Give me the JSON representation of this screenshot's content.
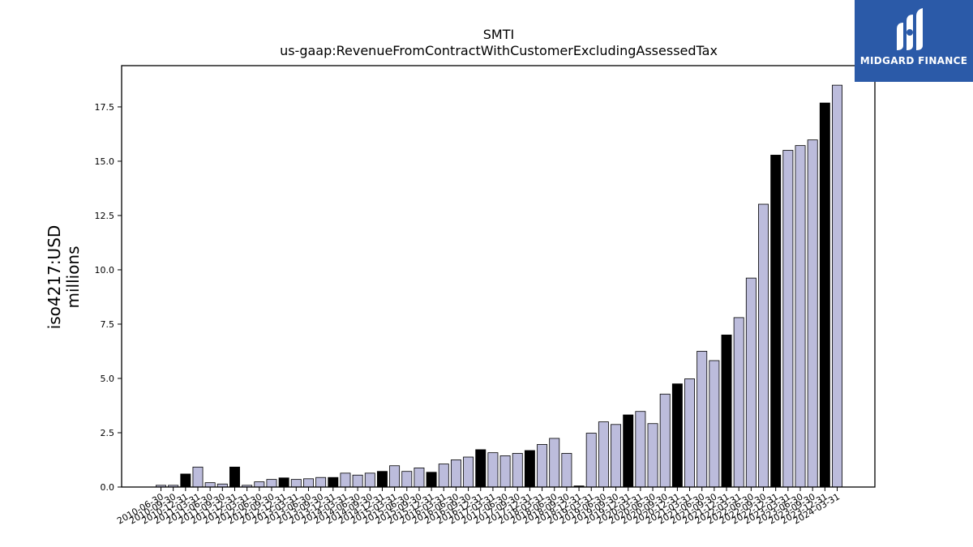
{
  "chart_data": {
    "type": "bar",
    "title": "SMTI",
    "subtitle": "us-gaap:RevenueFromContractWithCustomerExcludingAssessedTax",
    "ylabel_line1": "iso4217:USD",
    "ylabel_line2": "millions",
    "xlabel": "",
    "ylim": [
      0,
      19.4
    ],
    "yticks": [
      "0.0",
      "2.5",
      "5.0",
      "7.5",
      "10.0",
      "12.5",
      "15.0",
      "17.5"
    ],
    "grid": false,
    "colors": {
      "quarter": "#bcbcdc",
      "annual": "#000000",
      "edge": "#000000"
    },
    "categories": [
      "2010-06-30",
      "2010-09-30",
      "2010-12-31",
      "2011-03-31",
      "2011-06-30",
      "2011-09-30",
      "2011-12-31",
      "2012-03-31",
      "2012-06-30",
      "2012-09-30",
      "2012-12-31",
      "2013-03-31",
      "2013-06-30",
      "2013-09-30",
      "2013-12-31",
      "2014-03-31",
      "2014-06-30",
      "2014-09-30",
      "2014-12-31",
      "2015-03-31",
      "2015-06-30",
      "2015-09-30",
      "2015-12-31",
      "2016-03-31",
      "2016-06-30",
      "2016-09-30",
      "2016-12-31",
      "2017-03-31",
      "2017-06-30",
      "2017-09-30",
      "2017-12-31",
      "2018-03-31",
      "2018-06-30",
      "2018-09-30",
      "2018-12-31",
      "2019-03-31",
      "2019-06-30",
      "2019-09-30",
      "2019-12-31",
      "2020-03-31",
      "2020-06-30",
      "2020-09-30",
      "2020-12-31",
      "2021-03-31",
      "2021-06-30",
      "2021-09-30",
      "2021-12-31",
      "2022-03-31",
      "2022-06-30",
      "2022-09-30",
      "2022-12-31",
      "2023-03-31",
      "2023-06-30",
      "2023-09-30",
      "2023-12-31",
      "2024-03-31"
    ],
    "values": [
      0.08,
      0.08,
      0.6,
      0.92,
      0.2,
      0.14,
      0.92,
      0.08,
      0.24,
      0.35,
      0.42,
      0.35,
      0.38,
      0.44,
      0.44,
      0.64,
      0.55,
      0.64,
      0.72,
      0.98,
      0.72,
      0.88,
      0.68,
      1.06,
      1.25,
      1.38,
      1.72,
      1.58,
      1.44,
      1.55,
      1.68,
      1.96,
      2.24,
      1.55,
      0.05,
      2.48,
      3.0,
      2.88,
      3.32,
      3.48,
      2.92,
      4.28,
      4.75,
      4.98,
      6.25,
      5.82,
      7.0,
      7.8,
      9.62,
      13.02,
      15.28,
      15.5,
      15.72,
      15.98,
      17.68,
      18.5
    ],
    "annual_flags": [
      0,
      0,
      1,
      0,
      0,
      0,
      1,
      0,
      0,
      0,
      1,
      0,
      0,
      0,
      1,
      0,
      0,
      0,
      1,
      0,
      0,
      0,
      1,
      0,
      0,
      0,
      1,
      0,
      0,
      0,
      1,
      0,
      0,
      0,
      1,
      0,
      0,
      0,
      1,
      0,
      0,
      0,
      1,
      0,
      0,
      0,
      1,
      0,
      0,
      0,
      1,
      0,
      0,
      0,
      1,
      0
    ]
  },
  "logo": {
    "text": "MIDGARD FINANCE"
  }
}
